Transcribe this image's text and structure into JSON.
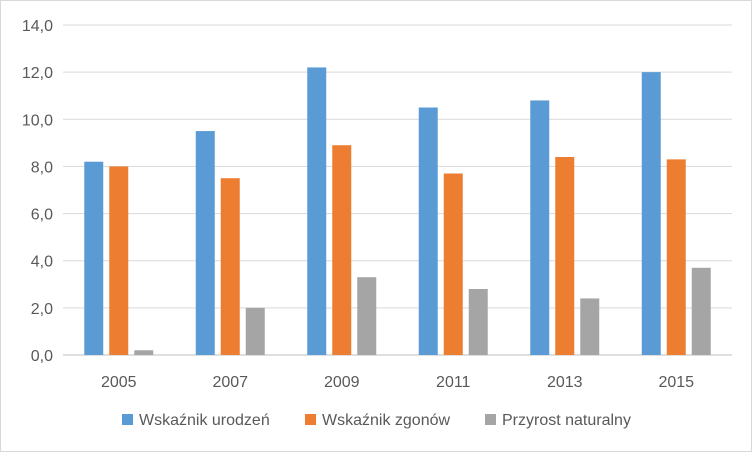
{
  "chart_data": {
    "type": "bar",
    "categories": [
      "2005",
      "2007",
      "2009",
      "2011",
      "2013",
      "2015"
    ],
    "series": [
      {
        "name": "Wskaźnik urodzeń",
        "color": "#5b9bd5",
        "values": [
          8.2,
          9.5,
          12.2,
          10.5,
          10.8,
          12.0
        ]
      },
      {
        "name": "Wskaźnik zgonów",
        "color": "#ed7d31",
        "values": [
          8.0,
          7.5,
          8.9,
          7.7,
          8.4,
          8.3
        ]
      },
      {
        "name": "Przyrost naturalny",
        "color": "#a5a5a5",
        "values": [
          0.2,
          2.0,
          3.3,
          2.8,
          2.4,
          3.7
        ]
      }
    ],
    "ylim": [
      0,
      14
    ],
    "yticks": [
      "0,0",
      "2,0",
      "4,0",
      "6,0",
      "8,0",
      "10,0",
      "12,0",
      "14,0"
    ],
    "grid": true,
    "legend_position": "bottom",
    "title": "",
    "xlabel": "",
    "ylabel": ""
  }
}
